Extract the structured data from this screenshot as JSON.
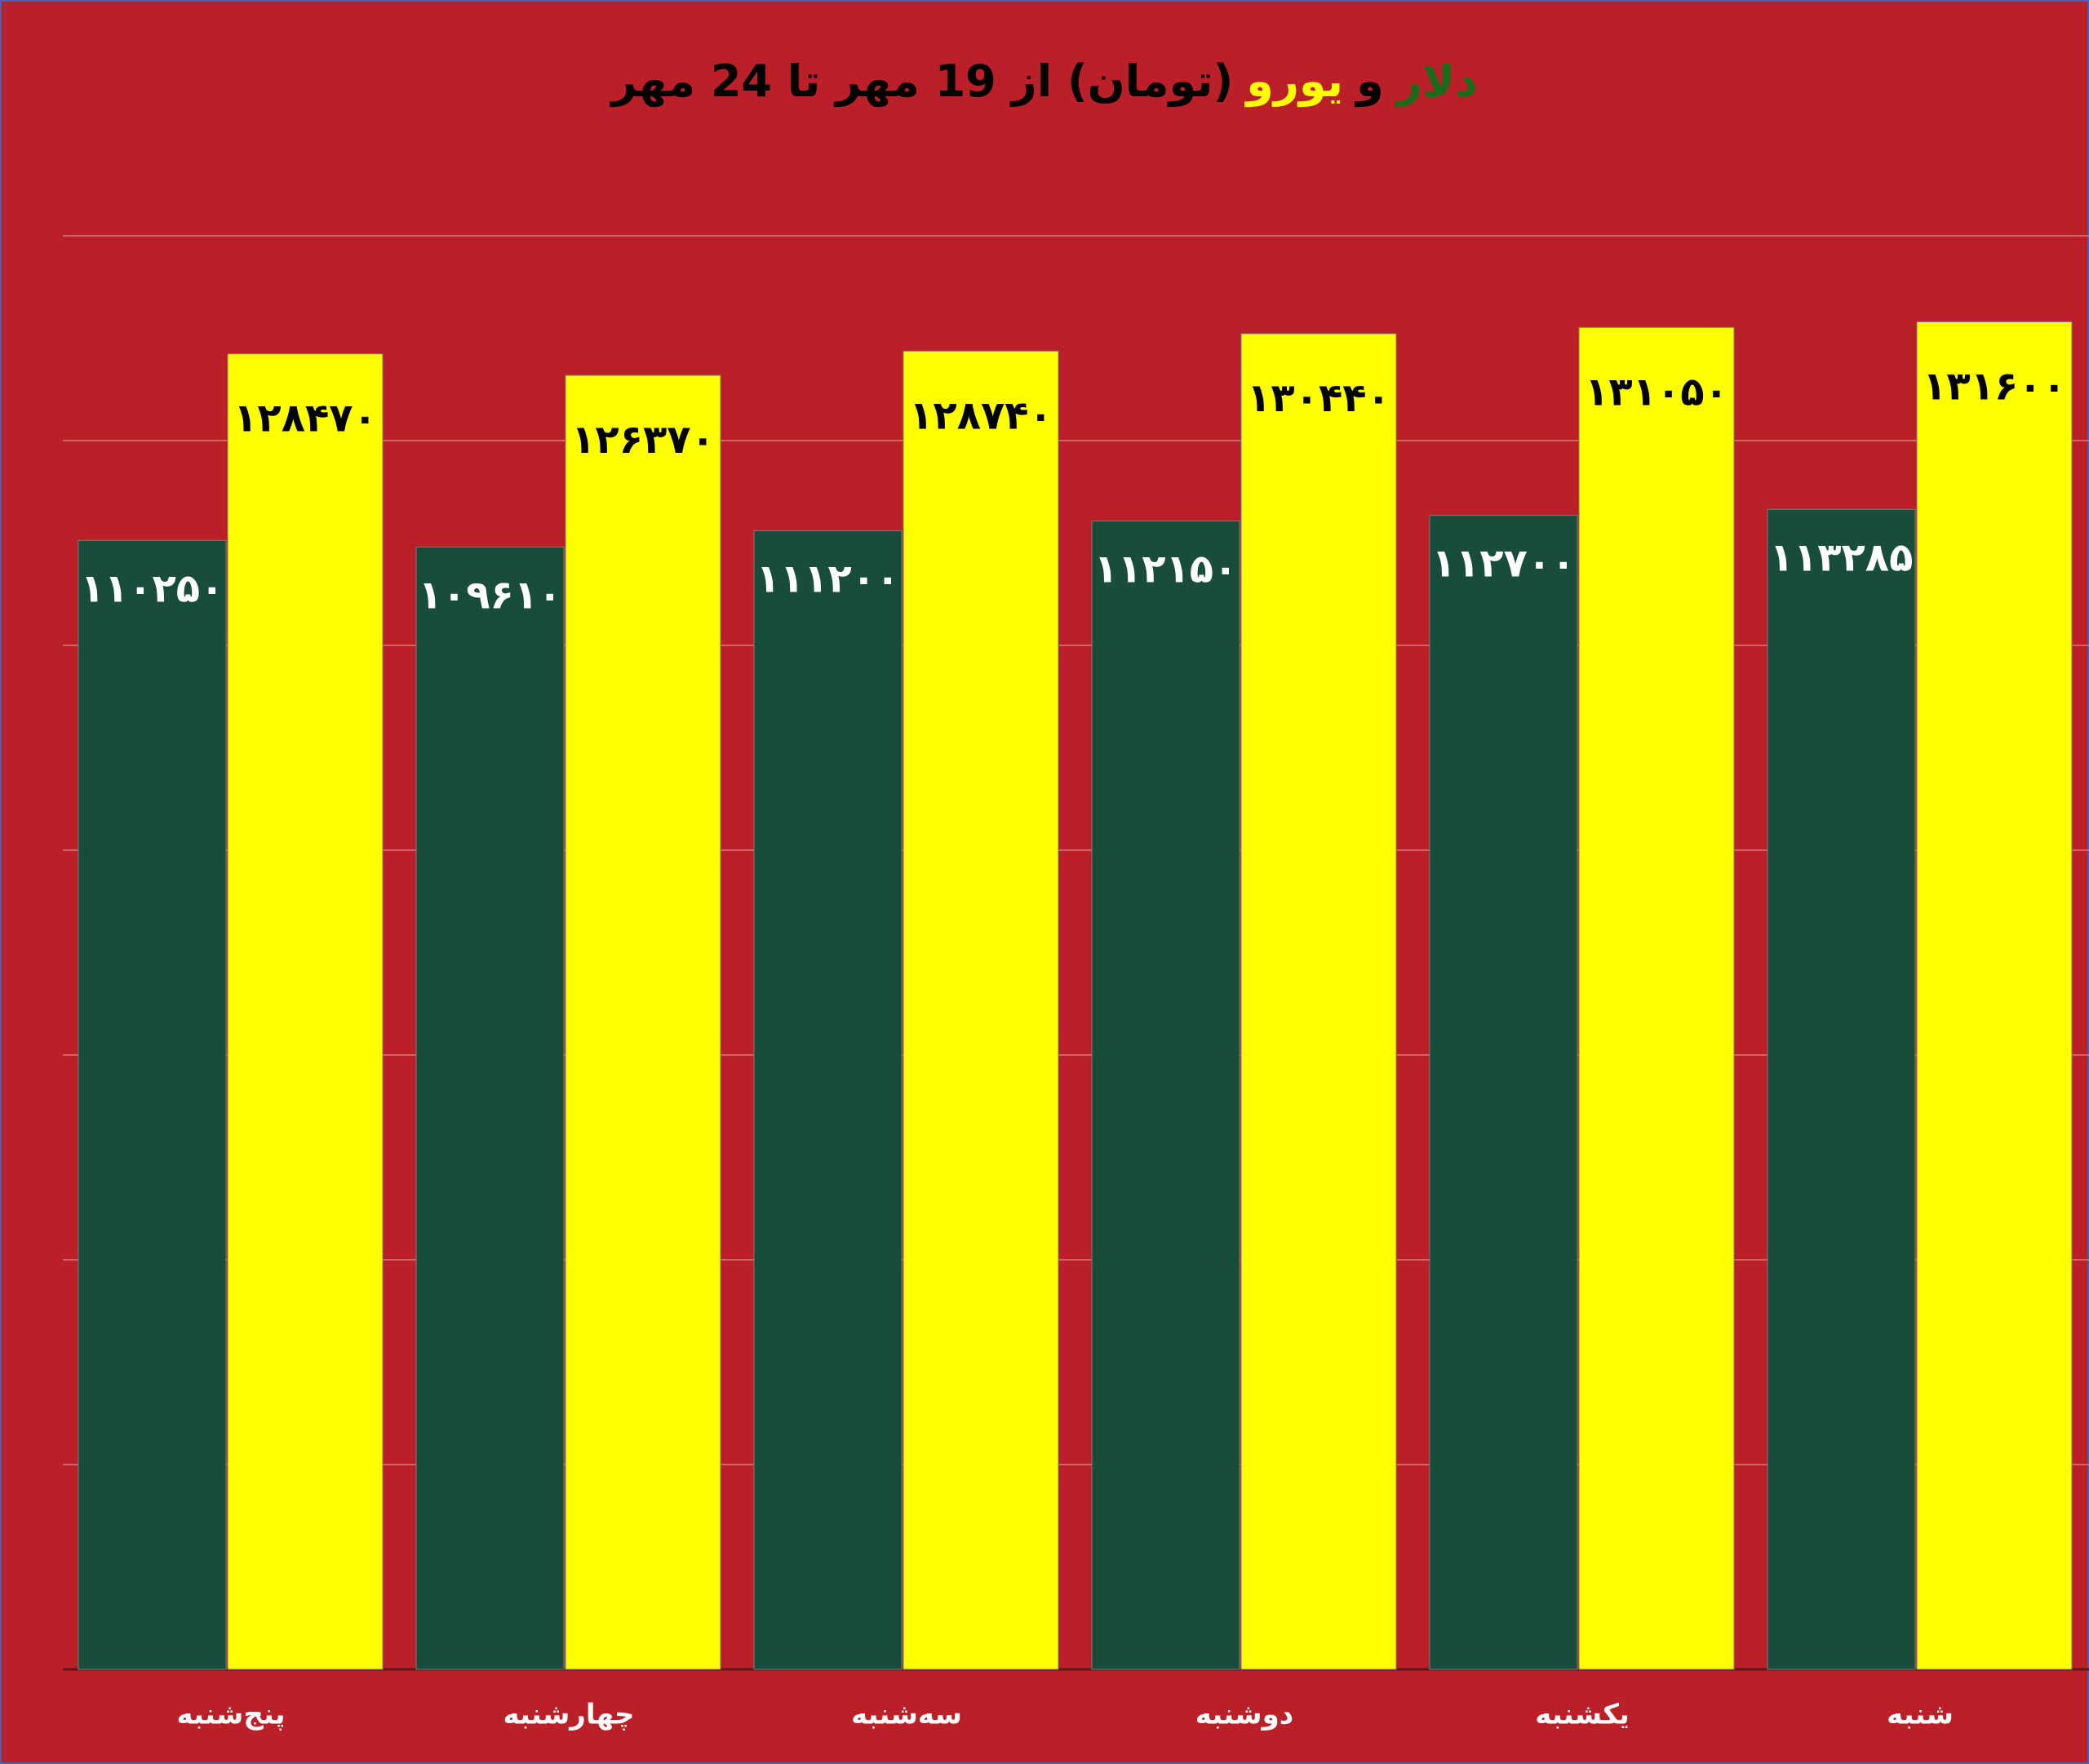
{
  "chart_data": {
    "type": "bar",
    "title_parts": [
      {
        "text": "دلار",
        "color": "#1a6b1a"
      },
      {
        "text": "و",
        "color": "#000000"
      },
      {
        "text": "یورو",
        "color": "#ffff00"
      },
      {
        "text": "(تومان) از 19 مهر تا 24 مهر",
        "color": "#000000"
      }
    ],
    "categories": [
      "پنج‌شنبه",
      "چهارشنبه",
      "سه‌شنبه",
      "دوشنبه",
      "یکشنبه",
      "شنبه"
    ],
    "series": [
      {
        "name": "دلار",
        "color": "#174d3a",
        "label_color": "#ffffff",
        "values": [
          110250,
          109610,
          111200,
          112150,
          112700,
          113285
        ],
        "value_labels": [
          "۱۱۰۲۵۰",
          "۱۰۹۶۱۰",
          "۱۱۱۲۰۰",
          "۱۱۲۱۵۰",
          "۱۱۲۷۰۰",
          "۱۱۳۲۸۵"
        ]
      },
      {
        "name": "یورو",
        "color": "#ffff00",
        "label_color": "#000000",
        "values": [
          128470,
          126370,
          128740,
          130440,
          131050,
          131600
        ],
        "value_labels": [
          "۱۲۸۴۷۰",
          "۱۲۶۳۷۰",
          "۱۲۸۷۴۰",
          "۱۳۰۴۴۰",
          "۱۳۱۰۵۰",
          "۱۳۱۶۰۰"
        ]
      }
    ],
    "ylim": [
      0,
      140000
    ],
    "yticks": [
      0,
      20000,
      40000,
      60000,
      80000,
      100000,
      120000,
      140000
    ],
    "grid": true,
    "background": "#bb2029"
  }
}
